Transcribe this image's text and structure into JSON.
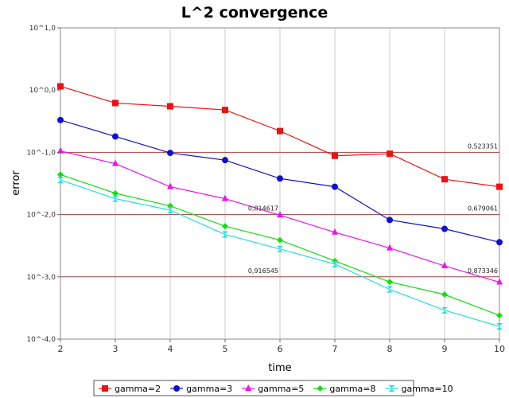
{
  "chart_data": {
    "type": "line",
    "title": "L^2 convergence",
    "xlabel": "time",
    "ylabel": "error",
    "yscale": "log",
    "xlim": [
      2,
      10
    ],
    "ylim": [
      0.0001,
      10
    ],
    "x": [
      2,
      3,
      4,
      5,
      6,
      7,
      8,
      9,
      10
    ],
    "x_ticks": [
      "2",
      "3",
      "4",
      "5",
      "6",
      "7",
      "8",
      "9",
      "10"
    ],
    "y_ticks": [
      {
        "value": 10,
        "label": "10^1,0"
      },
      {
        "value": 1,
        "label": "10^0,0"
      },
      {
        "value": 0.1,
        "label": "10^-1,0"
      },
      {
        "value": 0.01,
        "label": "10^-2,0"
      },
      {
        "value": 0.001,
        "label": "10^-3,0"
      },
      {
        "value": 0.0001,
        "label": "10^-4,0"
      }
    ],
    "grid": {
      "vertical": true,
      "horizontal": false
    },
    "reference_lines": [
      {
        "value": 0.1,
        "color": "#a04040"
      },
      {
        "value": 0.01,
        "color": "#a04040"
      },
      {
        "value": 0.001,
        "color": "#a04040"
      }
    ],
    "series": [
      {
        "name": "gamma=2",
        "color": "#ee1111",
        "marker": "square",
        "values": [
          1.15,
          0.62,
          0.55,
          0.48,
          0.22,
          0.088,
          0.095,
          0.037,
          0.028
        ]
      },
      {
        "name": "gamma=3",
        "color": "#1111cc",
        "marker": "circle",
        "values": [
          0.33,
          0.18,
          0.098,
          0.075,
          0.038,
          0.028,
          0.0082,
          0.0059,
          0.0036
        ]
      },
      {
        "name": "gamma=5",
        "color": "#ee11ee",
        "marker": "triangle",
        "values": [
          0.105,
          0.066,
          0.028,
          0.018,
          0.0098,
          0.0052,
          0.0029,
          0.0015,
          0.00082
        ]
      },
      {
        "name": "gamma=8",
        "color": "#11dd11",
        "marker": "diamond",
        "values": [
          0.044,
          0.022,
          0.0138,
          0.0065,
          0.0039,
          0.0018,
          0.00083,
          0.00052,
          0.00024
        ]
      },
      {
        "name": "gamma=10",
        "color": "#22dddd",
        "marker": "bowtie",
        "values": [
          0.036,
          0.018,
          0.0118,
          0.0048,
          0.0028,
          0.0016,
          0.00063,
          0.00029,
          0.00016
        ]
      }
    ],
    "annotations": [
      {
        "text": "0,523351",
        "x": 10,
        "y": 0.1,
        "align": "end"
      },
      {
        "text": "0,679061",
        "x": 10,
        "y": 0.01,
        "align": "end"
      },
      {
        "text": "0,814617",
        "x": 6,
        "y": 0.01,
        "align": "end"
      },
      {
        "text": "0,916545",
        "x": 6,
        "y": 0.001,
        "align": "end"
      },
      {
        "text": "0,873346",
        "x": 10,
        "y": 0.001,
        "align": "end"
      }
    ],
    "legend_position": "bottom"
  }
}
